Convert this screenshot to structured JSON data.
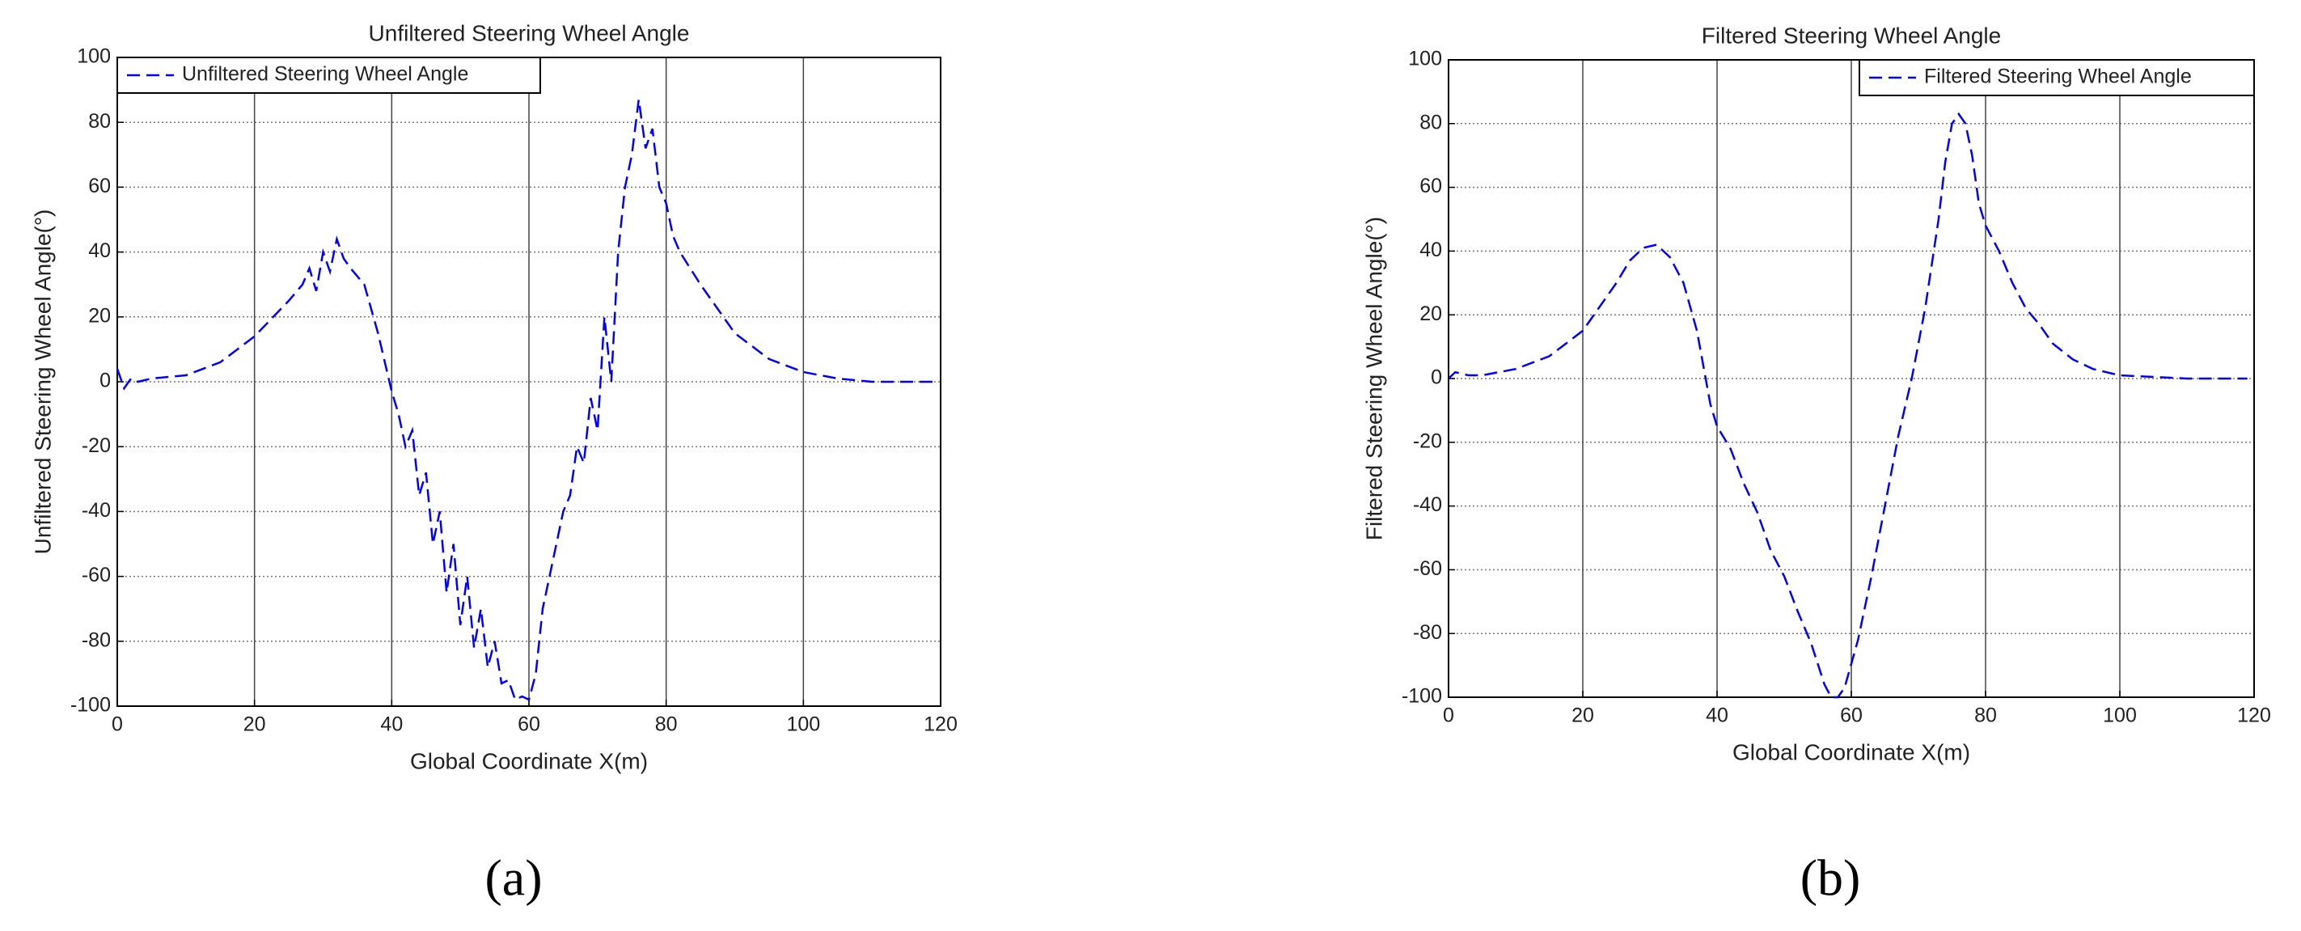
{
  "chart_data": [
    {
      "type": "line",
      "title": "Unfiltered Steering Wheel Angle",
      "panel_label": "(a)",
      "xlabel": "Global Coordinate X(m)",
      "ylabel": "Unfiltered Steering Wheel Angle(°)",
      "xlim": [
        0,
        120
      ],
      "xticks": [
        0,
        20,
        40,
        60,
        80,
        100,
        120
      ],
      "ylim": [
        -100,
        100
      ],
      "yticks": [
        -100,
        -80,
        -60,
        -40,
        -20,
        0,
        20,
        40,
        60,
        80,
        100
      ],
      "grid": true,
      "legend": "upper left",
      "x": [
        0,
        1,
        2,
        3,
        5,
        10,
        15,
        20,
        25,
        27,
        28,
        29,
        30,
        31,
        32,
        33,
        34,
        36,
        38,
        40,
        41,
        42,
        43,
        44,
        45,
        46,
        47,
        48,
        49,
        50,
        51,
        52,
        53,
        54,
        55,
        56,
        57,
        58,
        59,
        60,
        61,
        62,
        63,
        64,
        65,
        66,
        67,
        68,
        69,
        70,
        71,
        72,
        73,
        74,
        75,
        76,
        77,
        78,
        79,
        80,
        81,
        82,
        85,
        90,
        95,
        100,
        105,
        110,
        115,
        119
      ],
      "series": [
        {
          "name": "Unfiltered Steering Wheel Angle",
          "color": "#0000ff",
          "values": [
            4,
            -2,
            1,
            0,
            1,
            2,
            6,
            14,
            25,
            30,
            35,
            28,
            40,
            34,
            44,
            38,
            35,
            30,
            15,
            -3,
            -10,
            -20,
            -15,
            -35,
            -28,
            -50,
            -40,
            -65,
            -50,
            -75,
            -60,
            -82,
            -70,
            -88,
            -80,
            -93,
            -92,
            -98,
            -97,
            -98,
            -90,
            -70,
            -60,
            -50,
            -40,
            -35,
            -20,
            -25,
            -5,
            -15,
            20,
            0,
            40,
            60,
            70,
            87,
            72,
            78,
            60,
            55,
            45,
            40,
            30,
            15,
            7,
            3,
            1,
            0,
            0,
            0
          ]
        }
      ]
    },
    {
      "type": "line",
      "title": "Filtered Steering Wheel Angle",
      "panel_label": "(b)",
      "xlabel": "Global Coordinate X(m)",
      "ylabel": "Filtered Steering Wheel Angle(°)",
      "xlim": [
        0,
        120
      ],
      "xticks": [
        0,
        20,
        40,
        60,
        80,
        100,
        120
      ],
      "ylim": [
        -100,
        100
      ],
      "yticks": [
        -100,
        -80,
        -60,
        -40,
        -20,
        0,
        20,
        40,
        60,
        80,
        100
      ],
      "grid": true,
      "legend": "upper right",
      "x": [
        0,
        1,
        3,
        5,
        10,
        15,
        20,
        23,
        25,
        27,
        29,
        31,
        33,
        35,
        37,
        39,
        40,
        42,
        44,
        46,
        48,
        50,
        52,
        54,
        56,
        57,
        58,
        59,
        61,
        63,
        65,
        67,
        69,
        71,
        73,
        74,
        75,
        76,
        77,
        78,
        79,
        80,
        82,
        84,
        86,
        88,
        90,
        93,
        96,
        100,
        105,
        110,
        115,
        119
      ],
      "series": [
        {
          "name": "Filtered Steering Wheel Angle",
          "color": "#0000ff",
          "values": [
            0,
            2,
            1,
            1,
            3,
            7,
            15,
            24,
            30,
            37,
            41,
            42,
            38,
            30,
            15,
            -8,
            -15,
            -22,
            -33,
            -42,
            -54,
            -62,
            -73,
            -83,
            -96,
            -100,
            -100,
            -97,
            -82,
            -62,
            -40,
            -18,
            0,
            22,
            50,
            68,
            80,
            83,
            80,
            70,
            55,
            48,
            40,
            30,
            22,
            17,
            11,
            6,
            3,
            1,
            0.5,
            0,
            0,
            0
          ]
        }
      ]
    }
  ]
}
